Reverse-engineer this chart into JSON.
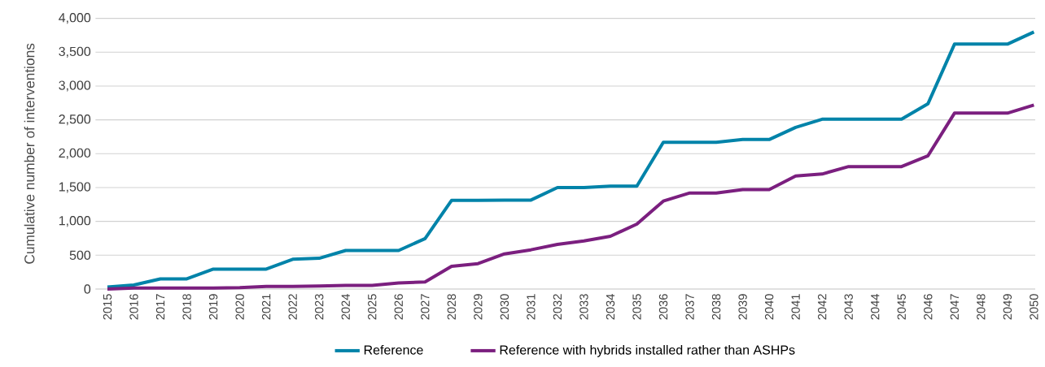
{
  "chart_data": {
    "type": "line",
    "ylabel": "Cumulative number of interventions",
    "categories": [
      "2015",
      "2016",
      "2017",
      "2018",
      "2019",
      "2020",
      "2021",
      "2022",
      "2023",
      "2024",
      "2025",
      "2026",
      "2027",
      "2028",
      "2029",
      "2030",
      "2031",
      "2032",
      "2033",
      "2034",
      "2035",
      "2036",
      "2037",
      "2038",
      "2039",
      "2040",
      "2041",
      "2042",
      "2043",
      "2044",
      "2045",
      "2046",
      "2047",
      "2048",
      "2049",
      "2050"
    ],
    "series": [
      {
        "name": "Reference",
        "color": "#0083a9",
        "values": [
          30,
          60,
          150,
          150,
          295,
          295,
          295,
          440,
          455,
          570,
          570,
          570,
          745,
          1310,
          1310,
          1315,
          1315,
          1500,
          1500,
          1520,
          1520,
          2170,
          2170,
          2170,
          2210,
          2210,
          2390,
          2510,
          2510,
          2510,
          2510,
          2740,
          3620,
          3620,
          3620,
          3800
        ]
      },
      {
        "name": "Reference with hybrids installed rather than ASHPs",
        "color": "#7b1f7f",
        "values": [
          0,
          15,
          15,
          15,
          15,
          20,
          40,
          40,
          45,
          55,
          55,
          90,
          105,
          335,
          375,
          520,
          580,
          660,
          710,
          780,
          960,
          1300,
          1420,
          1420,
          1470,
          1470,
          1670,
          1700,
          1810,
          1810,
          1810,
          1970,
          2600,
          2600,
          2600,
          2720
        ]
      }
    ],
    "ylim": [
      0,
      4000
    ],
    "yticks": [
      {
        "value": 0,
        "label": "0"
      },
      {
        "value": 500,
        "label": "500"
      },
      {
        "value": 1000,
        "label": "1,000"
      },
      {
        "value": 1500,
        "label": "1,500"
      },
      {
        "value": 2000,
        "label": "2,000"
      },
      {
        "value": 2500,
        "label": "2,500"
      },
      {
        "value": 3000,
        "label": "3,000"
      },
      {
        "value": 3500,
        "label": "3,500"
      },
      {
        "value": 4000,
        "label": "4,000"
      }
    ],
    "grid": "y",
    "legend": "bottom",
    "marker": "none",
    "line_style": "solid"
  }
}
